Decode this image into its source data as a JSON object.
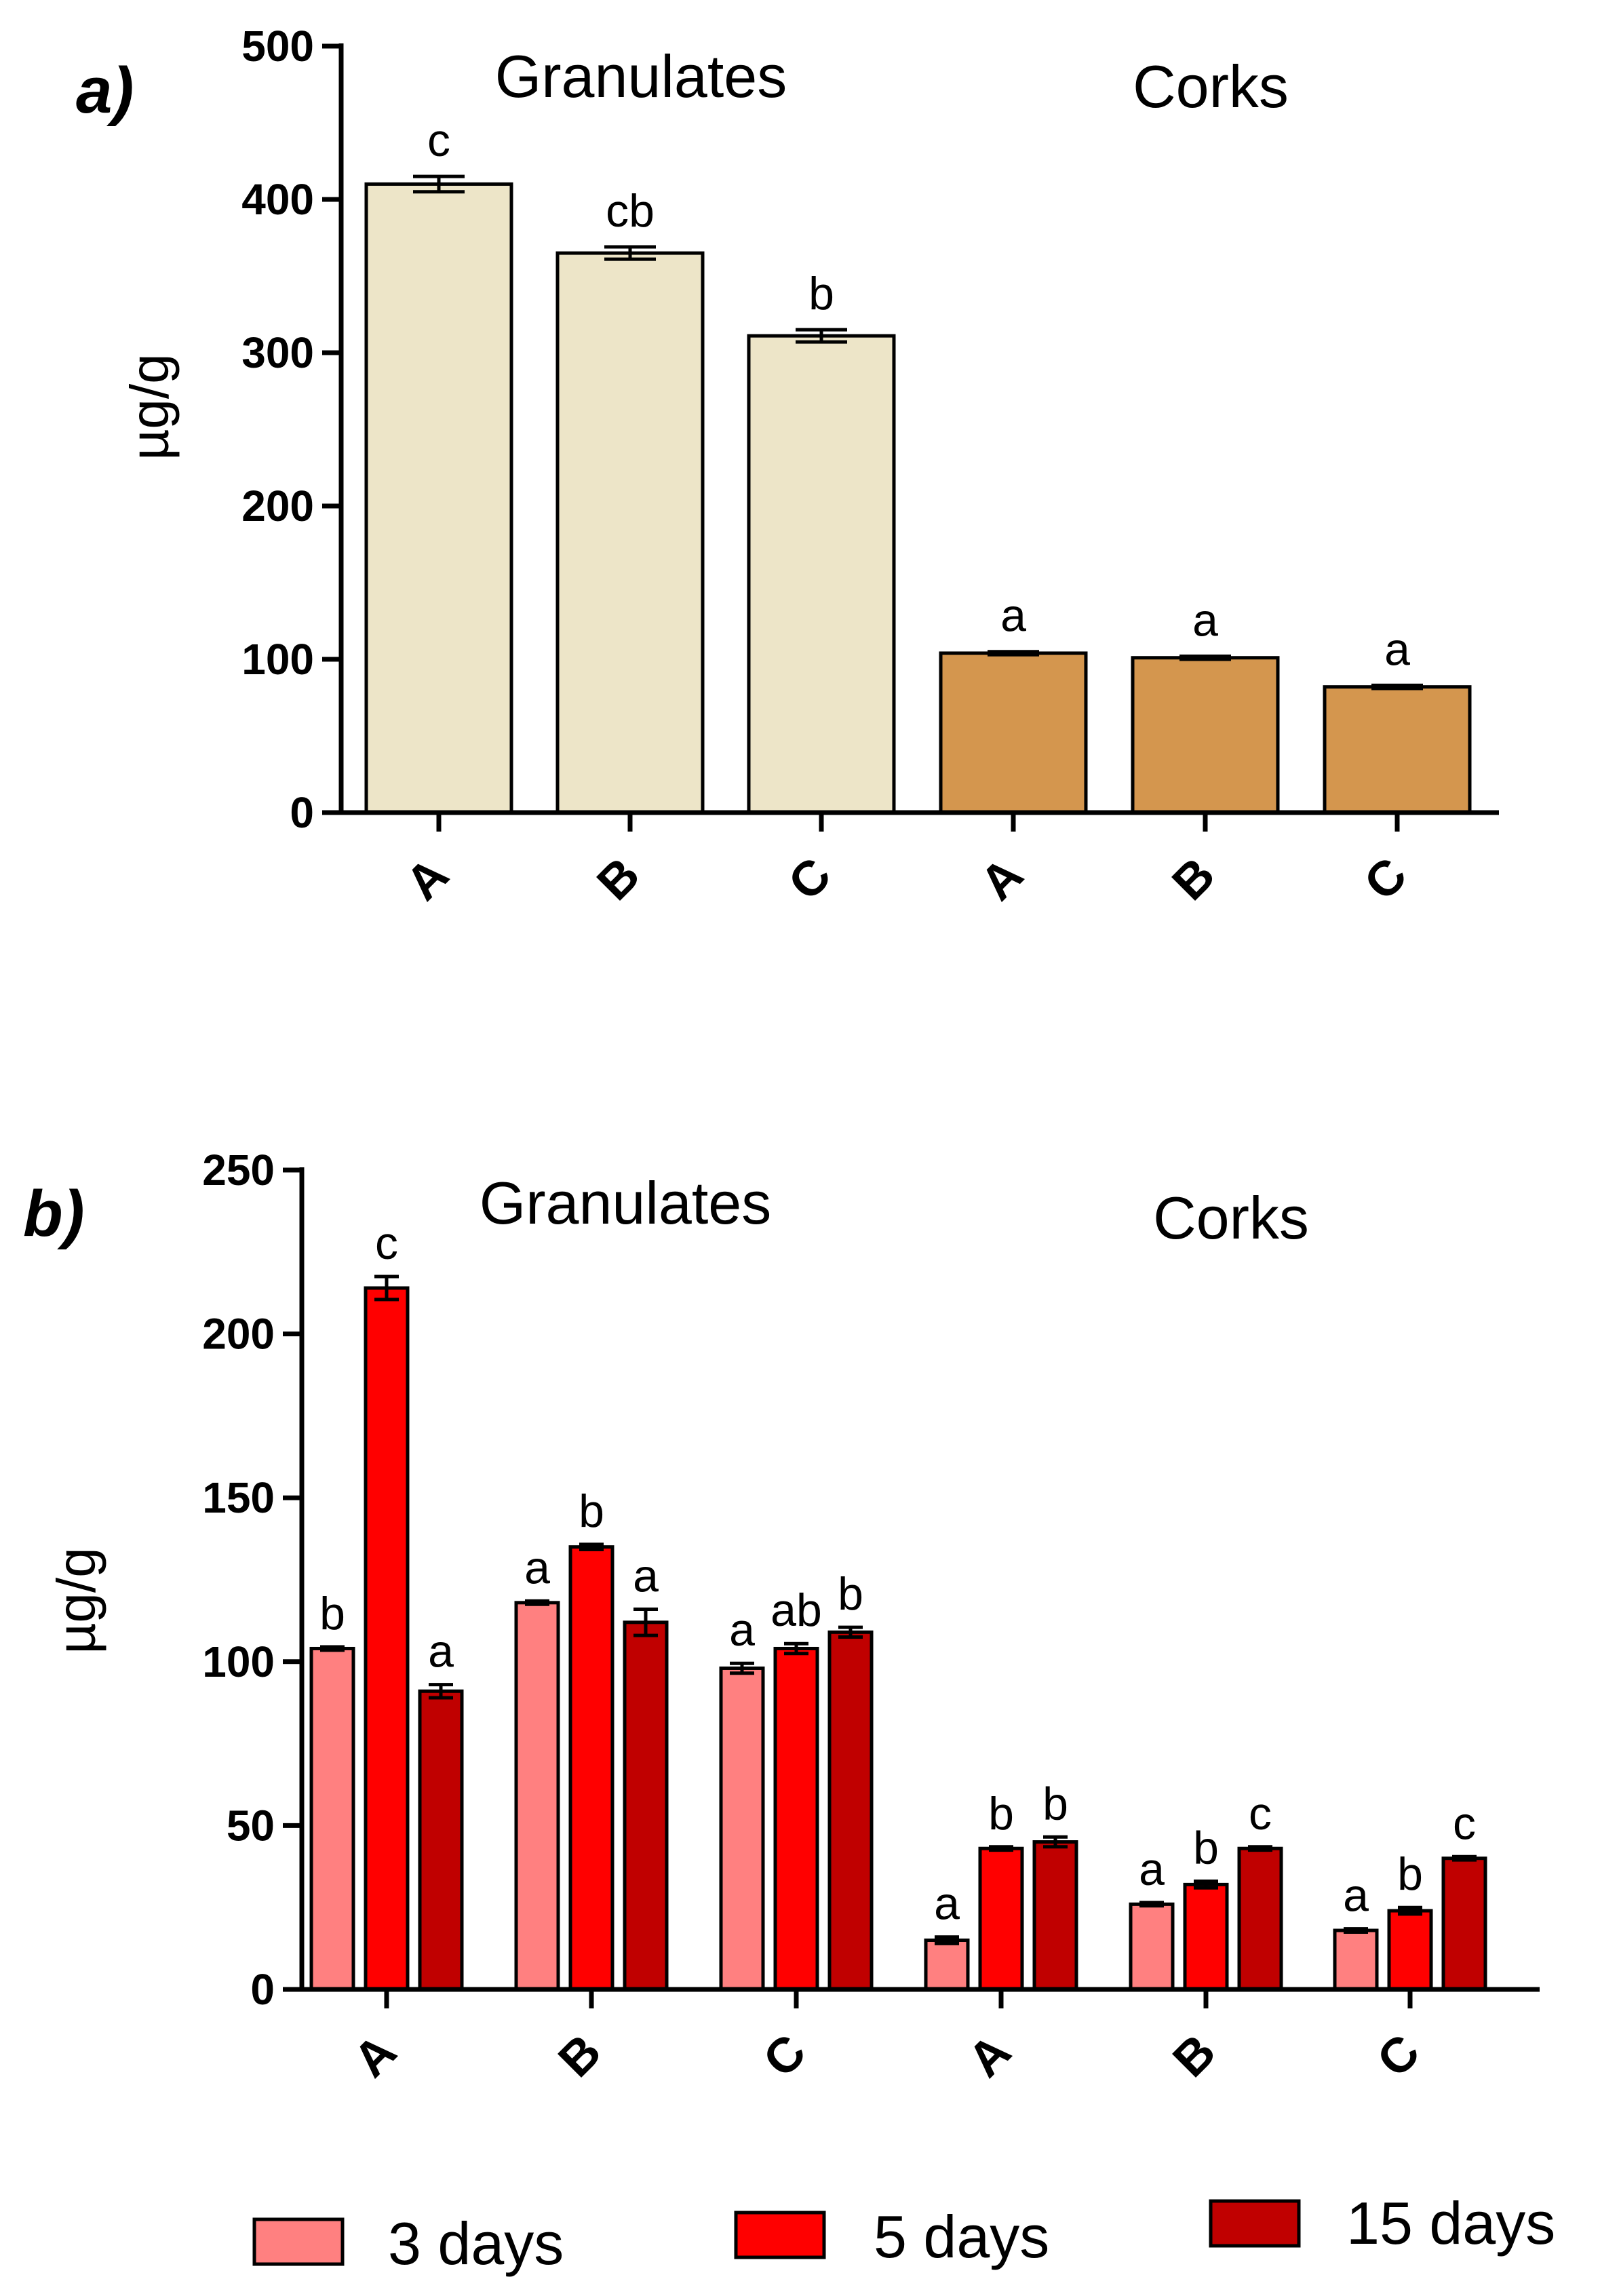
{
  "chart_data": [
    {
      "panel_label": "a)",
      "type": "bar",
      "ylabel": "µg/g",
      "ylim": [
        0,
        500
      ],
      "yticks": [
        "0",
        "100",
        "200",
        "300",
        "400",
        "500"
      ],
      "groups": [
        {
          "label": "Granulates",
          "categories": [
            "A",
            "B",
            "C"
          ],
          "color": "#EDE5C8"
        },
        {
          "label": "Corks",
          "categories": [
            "A",
            "B",
            "C"
          ],
          "color": "#D4964E"
        }
      ],
      "categories": [
        "A",
        "B",
        "C",
        "A",
        "B",
        "C"
      ],
      "values": [
        410,
        365,
        311,
        104,
        101,
        82
      ],
      "errors": [
        5,
        4,
        4,
        1,
        1,
        1
      ],
      "letters": [
        "c",
        "cb",
        "b",
        "a",
        "a",
        "a"
      ]
    },
    {
      "panel_label": "b)",
      "type": "bar",
      "ylabel": "µg/g",
      "ylim": [
        0,
        250
      ],
      "yticks": [
        "0",
        "50",
        "100",
        "150",
        "200",
        "250"
      ],
      "groups": [
        {
          "label": "Granulates",
          "categories": [
            "A",
            "B",
            "C"
          ]
        },
        {
          "label": "Corks",
          "categories": [
            "A",
            "B",
            "C"
          ]
        }
      ],
      "categories": [
        "A",
        "B",
        "C",
        "A",
        "B",
        "C"
      ],
      "series": [
        {
          "name": "3 days",
          "color": "#FF8080",
          "values": [
            104,
            118,
            98,
            15,
            26,
            18
          ],
          "errors": [
            0.5,
            0.5,
            1.5,
            1,
            0.5,
            0.5
          ],
          "letters": [
            "b",
            "a",
            "a",
            "a",
            "a",
            "a"
          ]
        },
        {
          "name": "5 days",
          "color": "#FF0000",
          "values": [
            214,
            135,
            104,
            43,
            32,
            24
          ],
          "errors": [
            3.5,
            0.8,
            1.5,
            0.5,
            1,
            1
          ],
          "letters": [
            "c",
            "b",
            "ab",
            "b",
            "b",
            "b"
          ]
        },
        {
          "name": "15 days",
          "color": "#C00000",
          "values": [
            91,
            112,
            109,
            45,
            43,
            40
          ],
          "errors": [
            2,
            4,
            1.5,
            1.5,
            0.5,
            0.5
          ],
          "letters": [
            "a",
            "a",
            "b",
            "b",
            "c",
            "c"
          ]
        }
      ]
    }
  ]
}
